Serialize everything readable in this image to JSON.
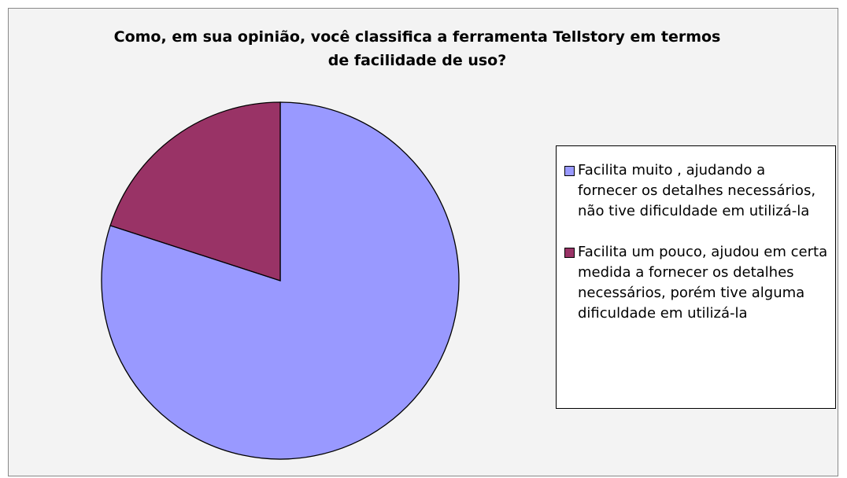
{
  "chart_data": {
    "type": "pie",
    "title": "Como, em sua opinião, você classifica a ferramenta Tellstory em termos de facilidade de uso?",
    "categories": [
      "Facilita muito , ajudando a fornecer os detalhes necessários, não tive dificuldade em utilizá-la",
      "Facilita um pouco, ajudou em certa medida a fornecer os detalhes necessários, porém tive alguma dificuldade em utilizá-la"
    ],
    "values": [
      80,
      20
    ],
    "colors": [
      "#9999ff",
      "#993366"
    ],
    "legend": "right"
  }
}
